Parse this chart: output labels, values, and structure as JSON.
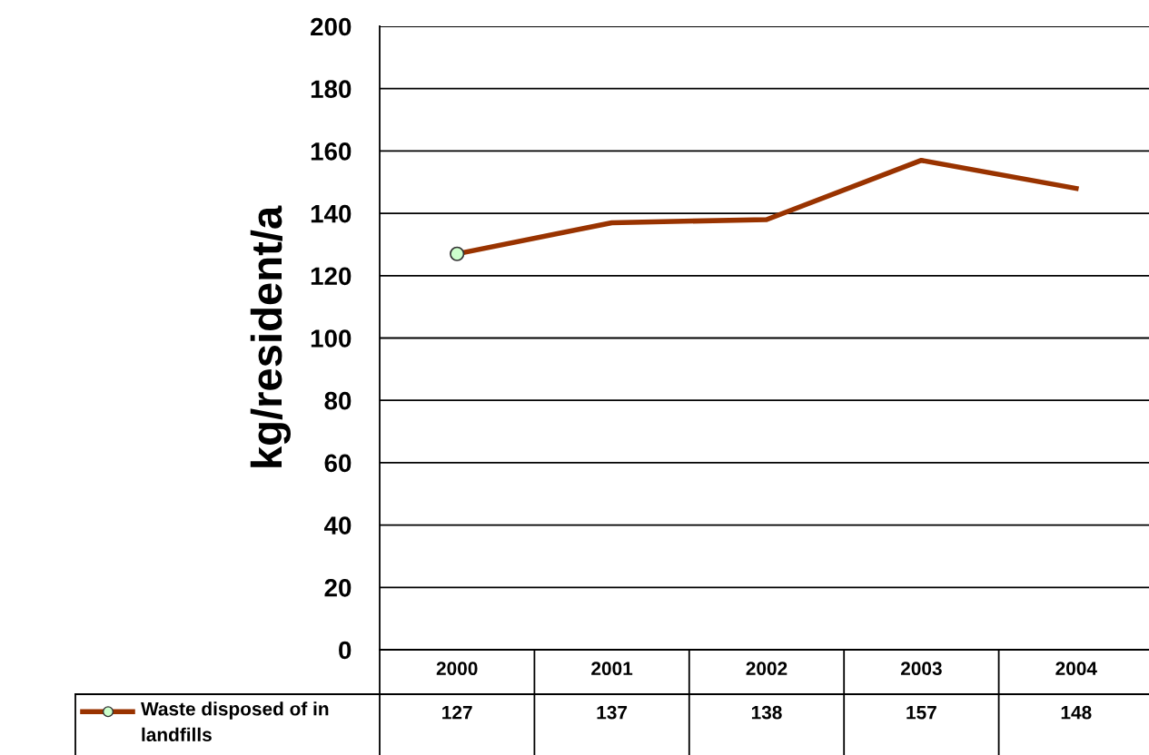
{
  "chart_data": {
    "type": "line",
    "ylabel": "kg/resident/a",
    "categories": [
      "2000",
      "2001",
      "2002",
      "2003",
      "2004"
    ],
    "series": [
      {
        "name": "Waste disposed of in landfills",
        "color": "#993300",
        "values": [
          127,
          137,
          138,
          157,
          148
        ],
        "marker": "none"
      }
    ],
    "ylim": [
      0,
      200
    ],
    "yticks": [
      0,
      20,
      40,
      60,
      80,
      100,
      120,
      140,
      160,
      180,
      200
    ],
    "grid": "y",
    "legend": "bottom left",
    "data_labels": true,
    "line_style": "solid"
  }
}
